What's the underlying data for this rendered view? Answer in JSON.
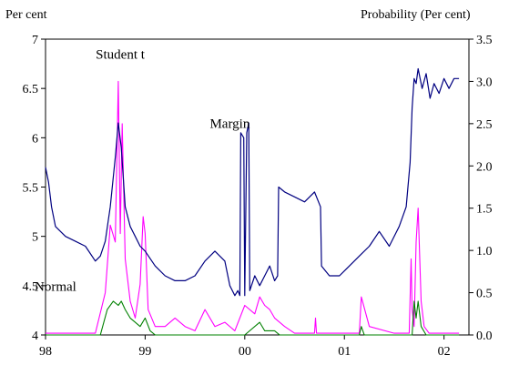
{
  "chart_data": {
    "type": "line",
    "y_left_label": "Per cent",
    "y_right_label": "Probability (Per cent)",
    "ylim_left": [
      4,
      7
    ],
    "ylim_right": [
      0,
      3.5
    ],
    "xlim": [
      1998.0,
      2002.25
    ],
    "x_tick_values": [
      1998,
      1999,
      2000,
      2001,
      2002
    ],
    "x_tick_labels": [
      "98",
      "99",
      "00",
      "01",
      "02"
    ],
    "y_left_ticks": [
      4,
      4.5,
      5,
      5.5,
      6,
      6.5,
      7
    ],
    "y_left_tick_labels": [
      "4",
      "4.5",
      "5",
      "5.5",
      "6",
      "6.5",
      "7"
    ],
    "y_right_ticks": [
      0,
      0.5,
      1,
      1.5,
      2,
      2.5,
      3,
      3.5
    ],
    "y_right_tick_labels": [
      "0.0",
      "0.5",
      "1.0",
      "1.5",
      "2.0",
      "2.5",
      "3.0",
      "3.5"
    ],
    "annotations": [
      {
        "text": "Student t",
        "x": 1998.75,
        "y": 6.8,
        "axis": "left"
      },
      {
        "text": "Margin",
        "x": 1999.85,
        "y": 6.1,
        "axis": "left"
      },
      {
        "text": "Normal",
        "x": 1998.1,
        "y": 4.45,
        "axis": "left"
      }
    ],
    "series": [
      {
        "name": "Margin",
        "axis": "left",
        "color": "#000080",
        "x": [
          1998.0,
          1998.03,
          1998.06,
          1998.1,
          1998.2,
          1998.3,
          1998.4,
          1998.5,
          1998.55,
          1998.6,
          1998.65,
          1998.7,
          1998.73,
          1998.76,
          1998.8,
          1998.85,
          1998.9,
          1998.95,
          1999.0,
          1999.1,
          1999.2,
          1999.3,
          1999.4,
          1999.5,
          1999.6,
          1999.7,
          1999.8,
          1999.85,
          1999.9,
          1999.93,
          1999.95,
          1999.96,
          1999.99,
          2000.0,
          2000.02,
          2000.04,
          2000.05,
          2000.1,
          2000.15,
          2000.2,
          2000.25,
          2000.3,
          2000.33,
          2000.34,
          2000.4,
          2000.5,
          2000.6,
          2000.7,
          2000.76,
          2000.77,
          2000.85,
          2000.95,
          2001.05,
          2001.15,
          2001.25,
          2001.35,
          2001.45,
          2001.55,
          2001.62,
          2001.66,
          2001.68,
          2001.7,
          2001.72,
          2001.74,
          2001.78,
          2001.82,
          2001.86,
          2001.9,
          2001.95,
          2002.0,
          2002.05,
          2002.1,
          2002.15
        ],
        "values": [
          5.7,
          5.55,
          5.3,
          5.1,
          5.0,
          4.95,
          4.9,
          4.75,
          4.8,
          4.95,
          5.3,
          5.8,
          6.15,
          5.9,
          5.3,
          5.1,
          5.0,
          4.9,
          4.85,
          4.7,
          4.6,
          4.55,
          4.55,
          4.6,
          4.75,
          4.85,
          4.75,
          4.5,
          4.4,
          4.45,
          4.4,
          6.05,
          6.0,
          4.4,
          6.05,
          6.15,
          4.45,
          4.6,
          4.5,
          4.6,
          4.7,
          4.55,
          4.6,
          5.5,
          5.45,
          5.4,
          5.35,
          5.45,
          5.3,
          4.7,
          4.6,
          4.6,
          4.7,
          4.8,
          4.9,
          5.05,
          4.9,
          5.1,
          5.3,
          5.75,
          6.3,
          6.6,
          6.55,
          6.7,
          6.5,
          6.65,
          6.4,
          6.55,
          6.45,
          6.6,
          6.5,
          6.6,
          6.6
        ]
      },
      {
        "name": "Student t",
        "axis": "right",
        "color": "#ff00ff",
        "x": [
          1998.0,
          1998.5,
          1998.6,
          1998.65,
          1998.7,
          1998.73,
          1998.75,
          1998.77,
          1998.8,
          1998.85,
          1998.9,
          1998.95,
          1998.98,
          1999.0,
          1999.03,
          1999.1,
          1999.2,
          1999.3,
          1999.4,
          1999.5,
          1999.6,
          1999.7,
          1999.8,
          1999.9,
          2000.0,
          2000.1,
          2000.15,
          2000.2,
          2000.25,
          2000.3,
          2000.4,
          2000.5,
          2000.7,
          2000.71,
          2000.72,
          2000.8,
          2001.0,
          2001.15,
          2001.17,
          2001.25,
          2001.5,
          2001.65,
          2001.67,
          2001.68,
          2001.7,
          2001.72,
          2001.74,
          2001.77,
          2001.8,
          2001.85,
          2002.0,
          2002.15
        ],
        "values": [
          0.02,
          0.02,
          0.5,
          1.3,
          1.1,
          3.0,
          1.2,
          2.5,
          0.9,
          0.4,
          0.2,
          0.6,
          1.4,
          1.2,
          0.3,
          0.1,
          0.1,
          0.2,
          0.1,
          0.05,
          0.3,
          0.1,
          0.15,
          0.05,
          0.35,
          0.25,
          0.45,
          0.35,
          0.3,
          0.2,
          0.1,
          0.02,
          0.02,
          0.2,
          0.02,
          0.02,
          0.02,
          0.02,
          0.45,
          0.1,
          0.02,
          0.02,
          0.9,
          0.3,
          0.1,
          1.1,
          1.5,
          0.4,
          0.1,
          0.02,
          0.02,
          0.02
        ]
      },
      {
        "name": "Normal",
        "axis": "right",
        "color": "#008000",
        "x": [
          1998.0,
          1998.55,
          1998.62,
          1998.68,
          1998.73,
          1998.76,
          1998.8,
          1998.85,
          1998.9,
          1998.95,
          1999.0,
          1999.05,
          1999.1,
          2000.0,
          2000.15,
          2000.2,
          2000.3,
          2000.35,
          2001.15,
          2001.17,
          2001.2,
          2001.68,
          2001.7,
          2001.72,
          2001.74,
          2001.77,
          2001.82,
          2002.15
        ],
        "values": [
          0.0,
          0.0,
          0.3,
          0.4,
          0.35,
          0.4,
          0.3,
          0.2,
          0.15,
          0.1,
          0.2,
          0.05,
          0.0,
          0.0,
          0.15,
          0.05,
          0.05,
          0.0,
          0.0,
          0.1,
          0.0,
          0.0,
          0.4,
          0.2,
          0.4,
          0.1,
          0.0,
          0.0
        ]
      }
    ]
  }
}
